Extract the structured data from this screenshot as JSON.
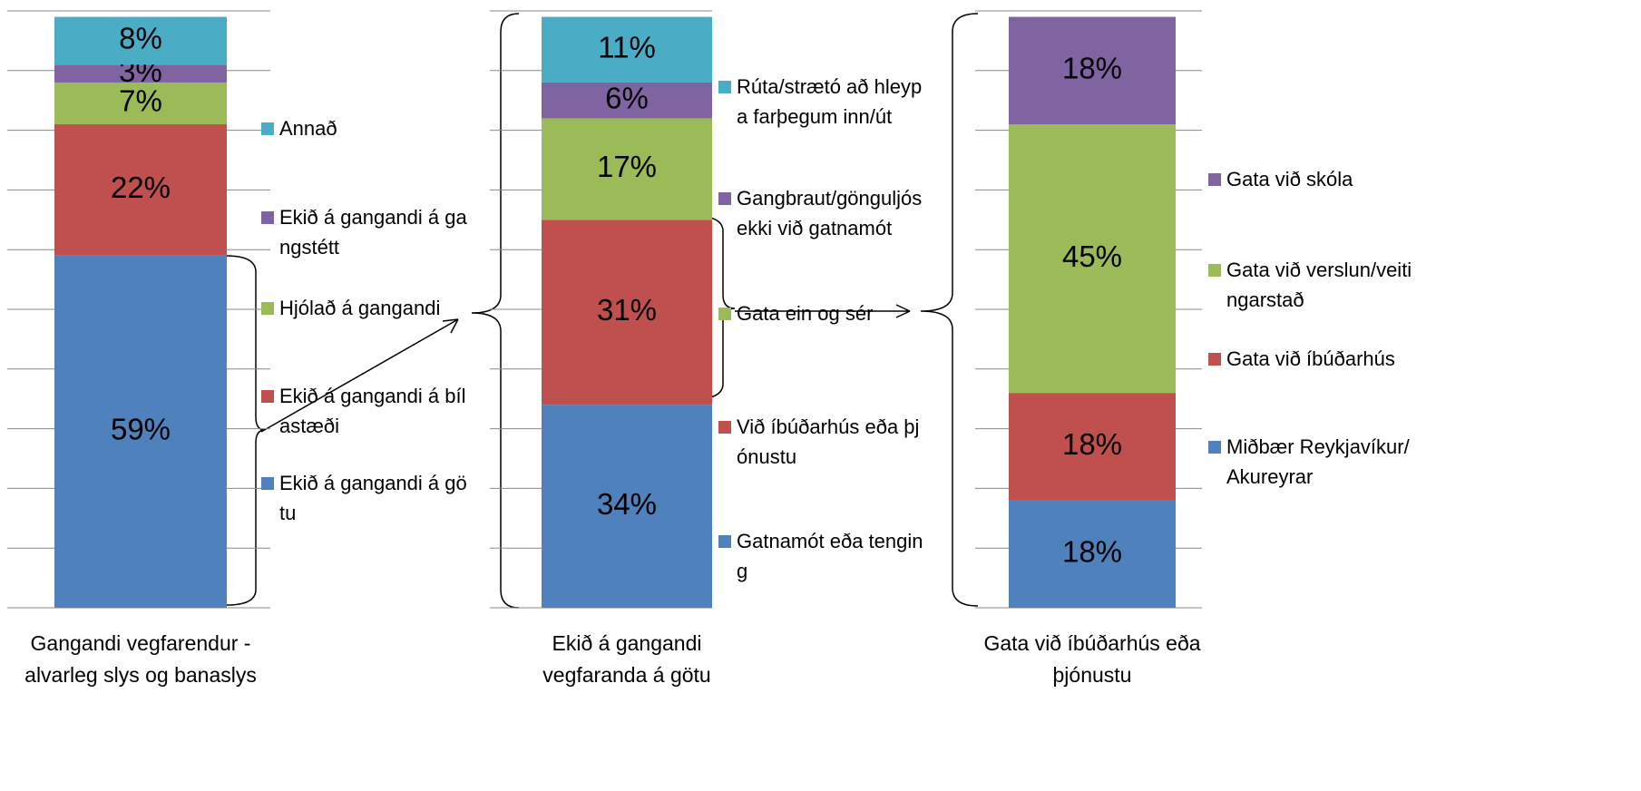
{
  "chart_data": [
    {
      "type": "stacked-bar",
      "categories": [
        "Gangandi vegfarendur - alvarleg slys og banaslys"
      ],
      "ylim": [
        0,
        100
      ],
      "yticks": [
        0,
        10,
        20,
        30,
        40,
        50,
        60,
        70,
        80,
        90,
        100
      ],
      "grid": true,
      "series": [
        {
          "name": "Ekið á gangandi á götu",
          "color": "#4f81bd",
          "values": [
            59
          ],
          "value_labels": [
            "59%"
          ]
        },
        {
          "name": "Ekið á gangandi á bílastæði",
          "color": "#c0504d",
          "values": [
            22
          ],
          "value_labels": [
            "22%"
          ]
        },
        {
          "name": "Hjólað á gangandi",
          "color": "#9bbb59",
          "values": [
            7
          ],
          "value_labels": [
            "7%"
          ]
        },
        {
          "name": "Ekið á gangandi á gangstétt",
          "color": "#8064a2",
          "values": [
            3
          ],
          "value_labels": [
            "3%"
          ]
        },
        {
          "name": "Annað",
          "color": "#4bacc6",
          "values": [
            8
          ],
          "value_labels": [
            "8%"
          ]
        }
      ]
    },
    {
      "type": "stacked-bar",
      "categories": [
        "Ekið á gangandi vegfaranda á götu"
      ],
      "ylim": [
        0,
        100
      ],
      "yticks": [
        0,
        10,
        20,
        30,
        40,
        50,
        60,
        70,
        80,
        90,
        100
      ],
      "grid": true,
      "series": [
        {
          "name": "Gatnamót eða tenging",
          "color": "#4f81bd",
          "values": [
            34
          ],
          "value_labels": [
            "34%"
          ]
        },
        {
          "name": "Við íbúðarhús eða þjónustu",
          "color": "#c0504d",
          "values": [
            31
          ],
          "value_labels": [
            "31%"
          ]
        },
        {
          "name": "Gata ein og sér",
          "color": "#9bbb59",
          "values": [
            17
          ],
          "value_labels": [
            "17%"
          ]
        },
        {
          "name": "Gangbraut/gönguljós ekki við gatnamót",
          "color": "#8064a2",
          "values": [
            6
          ],
          "value_labels": [
            "6%"
          ]
        },
        {
          "name": "Rúta/strætó að hleypa farþegum inn/út",
          "color": "#4bacc6",
          "values": [
            11
          ],
          "value_labels": [
            "11%"
          ]
        }
      ]
    },
    {
      "type": "stacked-bar",
      "categories": [
        "Gata við íbúðarhús eða þjónustu"
      ],
      "ylim": [
        0,
        100
      ],
      "yticks": [
        0,
        10,
        20,
        30,
        40,
        50,
        60,
        70,
        80,
        90,
        100
      ],
      "grid": true,
      "series": [
        {
          "name": "Miðbær Reykjavíkur/Akureyrar",
          "color": "#4f81bd",
          "values": [
            18
          ],
          "value_labels": [
            "18%"
          ]
        },
        {
          "name": "Gata við íbúðarhús",
          "color": "#c0504d",
          "values": [
            18
          ],
          "value_labels": [
            "18%"
          ]
        },
        {
          "name": "Gata við verslun/veitingarstað",
          "color": "#9bbb59",
          "values": [
            45
          ],
          "value_labels": [
            "45%"
          ]
        },
        {
          "name": "Gata við skóla",
          "color": "#8064a2",
          "values": [
            18
          ],
          "value_labels": [
            "18%"
          ]
        }
      ]
    }
  ]
}
